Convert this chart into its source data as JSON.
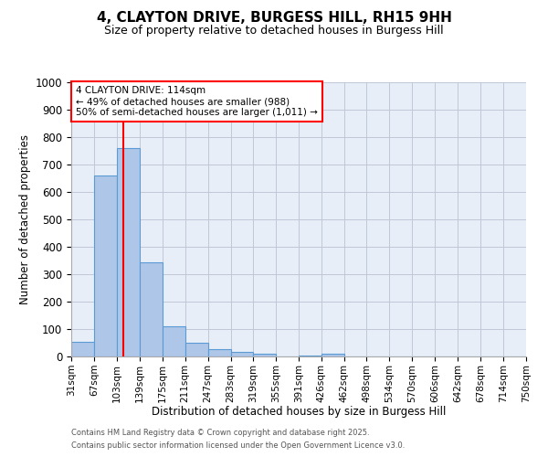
{
  "title": "4, CLAYTON DRIVE, BURGESS HILL, RH15 9HH",
  "subtitle": "Size of property relative to detached houses in Burgess Hill",
  "xlabel": "Distribution of detached houses by size in Burgess Hill",
  "ylabel": "Number of detached properties",
  "bar_color": "#aec6e8",
  "bar_edge_color": "#5b9bd5",
  "background_color": "#e8eef8",
  "grid_color": "#c0c8d8",
  "red_line_x": 114,
  "annotation_title": "4 CLAYTON DRIVE: 114sqm",
  "annotation_line2": "← 49% of detached houses are smaller (988)",
  "annotation_line3": "50% of semi-detached houses are larger (1,011) →",
  "footer1": "Contains HM Land Registry data © Crown copyright and database right 2025.",
  "footer2": "Contains public sector information licensed under the Open Government Licence v3.0.",
  "bins": [
    31,
    67,
    103,
    139,
    175,
    211,
    247,
    283,
    319,
    355,
    391,
    426,
    462,
    498,
    534,
    570,
    606,
    642,
    678,
    714,
    750
  ],
  "counts": [
    55,
    660,
    760,
    345,
    110,
    50,
    28,
    16,
    11,
    0,
    5,
    10,
    0,
    0,
    0,
    0,
    0,
    0,
    0,
    0
  ],
  "ylim": [
    0,
    1000
  ],
  "yticks": [
    0,
    100,
    200,
    300,
    400,
    500,
    600,
    700,
    800,
    900,
    1000
  ]
}
